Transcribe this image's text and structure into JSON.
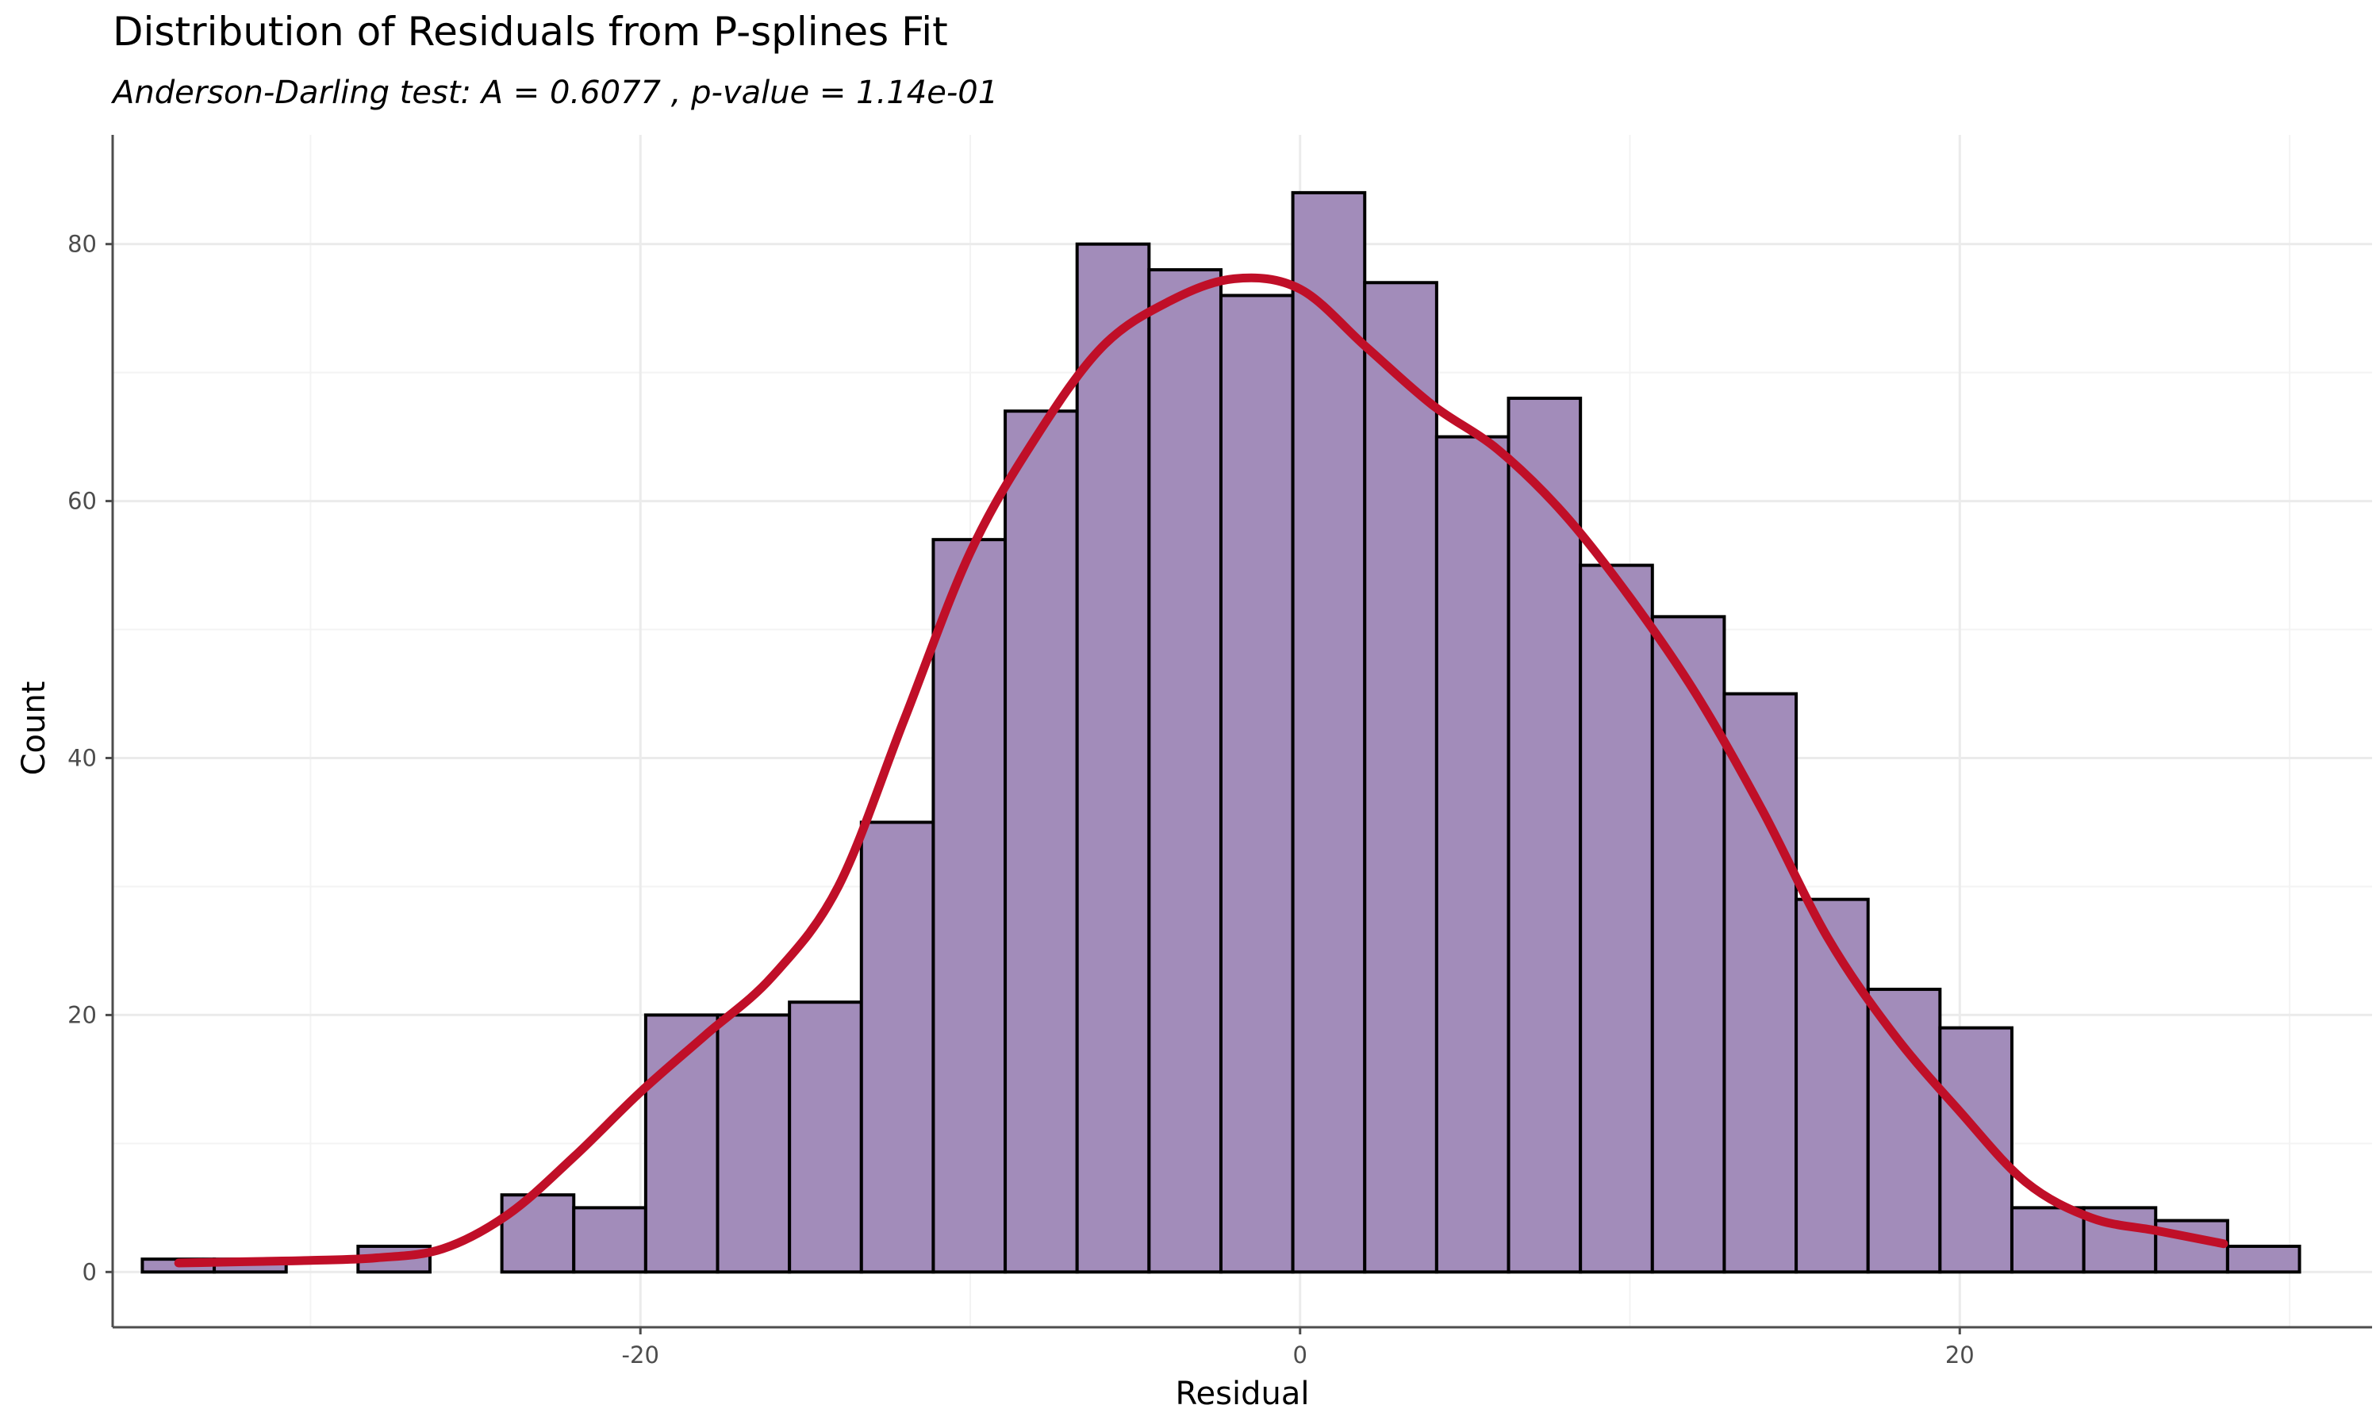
{
  "chart_data": {
    "type": "bar",
    "title": "Distribution of Residuals from P-splines Fit",
    "subtitle": "Anderson-Darling test: A = 0.6077 , p-value = 1.14e-01",
    "xlabel": "Residual",
    "ylabel": "Count",
    "xlim": [
      -36.0,
      32.5
    ],
    "ylim": [
      -4.3,
      88.5
    ],
    "x_ticks": [
      -20,
      0,
      20
    ],
    "x_tick_labels": [
      "-20",
      "0",
      "20"
    ],
    "y_ticks": [
      0,
      20,
      40,
      60,
      80
    ],
    "y_tick_labels": [
      "0",
      "20",
      "40",
      "60",
      "80"
    ],
    "bin_width": 2.18,
    "bin_start": -35.1,
    "counts": [
      1,
      1,
      0,
      2,
      0,
      6,
      5,
      20,
      20,
      21,
      35,
      57,
      67,
      80,
      78,
      76,
      84,
      77,
      65,
      68,
      55,
      51,
      45,
      29,
      22,
      19,
      5,
      5,
      4,
      2
    ],
    "density_curve": {
      "x": [
        -34.0,
        -32.0,
        -30.0,
        -28.0,
        -26.0,
        -24.0,
        -22.0,
        -20.0,
        -18.0,
        -16.0,
        -14.0,
        -12.0,
        -10.0,
        -8.0,
        -6.0,
        -4.0,
        -2.0,
        0.0,
        2.0,
        4.0,
        6.0,
        8.0,
        10.0,
        12.0,
        14.0,
        16.0,
        18.0,
        20.0,
        22.0,
        24.0,
        26.0,
        28.0
      ],
      "y": [
        0.7,
        0.8,
        0.9,
        1.1,
        1.8,
        4.5,
        9.0,
        14.0,
        18.5,
        23.0,
        30.0,
        43.0,
        56.0,
        65.0,
        72.0,
        75.5,
        77.3,
        76.5,
        72.0,
        67.5,
        64.0,
        59.0,
        52.5,
        45.0,
        36.0,
        26.0,
        18.5,
        12.5,
        7.0,
        4.2,
        3.2,
        2.2
      ]
    },
    "grid": true,
    "legend": "none",
    "colors": {
      "bar_fill": "#a28cba",
      "bar_stroke": "#000000",
      "density": "#c00f28"
    }
  }
}
